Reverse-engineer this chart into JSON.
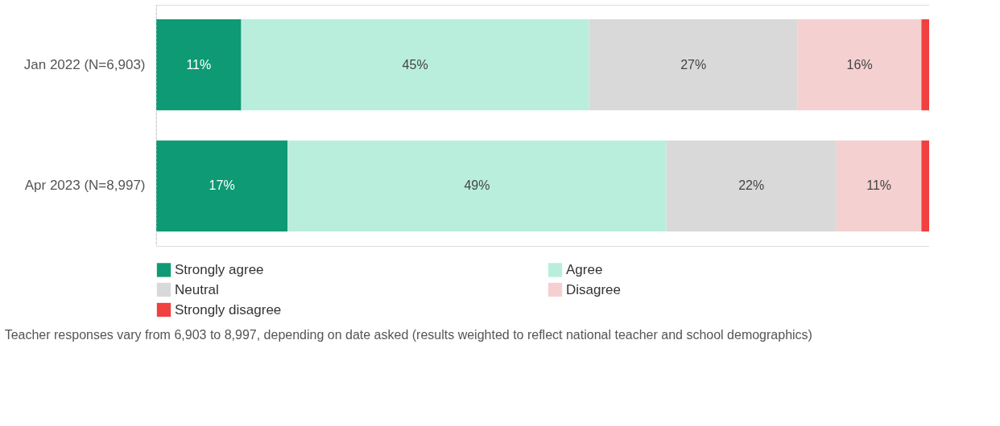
{
  "chart_data": {
    "type": "bar",
    "orientation": "horizontal",
    "stacked": true,
    "categories": [
      "Jan 2022      (N=6,903)",
      "Apr 2023      (N=8,997)"
    ],
    "xlim": [
      0,
      100
    ],
    "tick_labels": "y",
    "grid": false,
    "legend": "bottom",
    "series": [
      {
        "name": "Strongly agree",
        "color": "#0e9a74",
        "values": [
          11,
          17
        ],
        "value_labels": [
          "11%",
          "17%"
        ]
      },
      {
        "name": "Agree",
        "color": "#b9eedd",
        "values": [
          45,
          49
        ],
        "value_labels": [
          "45%",
          "49%"
        ]
      },
      {
        "name": "Neutral",
        "color": "#d9d9d9",
        "values": [
          27,
          22
        ],
        "value_labels": [
          "27%",
          "22%"
        ]
      },
      {
        "name": "Disagree",
        "color": "#f5d0d0",
        "values": [
          16,
          11
        ],
        "value_labels": [
          "16%",
          "11%"
        ]
      },
      {
        "name": "Strongly disagree",
        "color": "#f04040",
        "values": [
          1,
          1
        ],
        "value_labels": [
          null,
          null
        ]
      }
    ],
    "annotations": [
      "Teacher responses vary from 6,903 to 8,997, depending on date asked (results weighted to reflect national teacher and school demographics)"
    ]
  }
}
